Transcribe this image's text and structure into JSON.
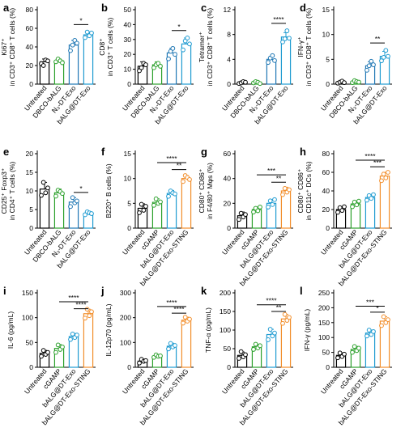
{
  "colors": {
    "Untreated": "#000000",
    "DBCO-bALG": "#2ca02c",
    "cGAMP": "#2ca02c",
    "N3-DT-Exo": "#1f77b4",
    "bALG@DT-Exo": "#1f9bd1",
    "bALG@DT-Exo-STING": "#f28e2b"
  },
  "chart_data": [
    {
      "type": "bar",
      "panel": "a",
      "ylabel": "Ki67⁺ in CD3⁺ CD8⁺ T cells (%)",
      "ylim": [
        0,
        80
      ],
      "yticks": [
        0,
        20,
        40,
        60,
        80
      ],
      "categories": [
        "Untreated",
        "DBCO-bALG",
        "N₃-DT-Exo",
        "bALG@DT-Exo"
      ],
      "values": [
        24,
        25,
        42,
        53
      ],
      "errors": [
        3,
        2,
        5,
        3
      ],
      "points": [
        [
          22,
          20,
          26,
          25
        ],
        [
          24,
          27,
          25,
          23
        ],
        [
          36,
          42,
          47,
          44
        ],
        [
          50,
          56,
          52,
          55
        ]
      ],
      "sig": [
        {
          "from": 2,
          "to": 3,
          "label": "*",
          "y": 64
        }
      ]
    },
    {
      "type": "bar",
      "panel": "b",
      "ylabel": "CD8⁺ in CD3⁺ T cells (%)",
      "ylim": [
        0,
        50
      ],
      "yticks": [
        0,
        10,
        20,
        30,
        40,
        50
      ],
      "categories": [
        "Untreated",
        "DBCO-bALG",
        "N₃-DT-Exo",
        "bALG@DT-Exo"
      ],
      "values": [
        12,
        13,
        21,
        27
      ],
      "errors": [
        3,
        2,
        3,
        4
      ],
      "points": [
        [
          9,
          11,
          14,
          13
        ],
        [
          11,
          13,
          14,
          12
        ],
        [
          17,
          22,
          24,
          20
        ],
        [
          23,
          29,
          31,
          27
        ]
      ],
      "sig": [
        {
          "from": 2,
          "to": 3,
          "label": "*",
          "y": 36
        }
      ]
    },
    {
      "type": "bar",
      "panel": "c",
      "ylabel": "Tetramer⁺ in CD3⁺ CD8⁺ T cells (%)",
      "ylim": [
        0,
        12
      ],
      "yticks": [
        0,
        4,
        8,
        12
      ],
      "categories": [
        "Untreated",
        "DBCO-bALG",
        "N₃-DT-Exo",
        "bALG@DT-Exo"
      ],
      "values": [
        0.3,
        0.3,
        4.0,
        7.6
      ],
      "errors": [
        0.2,
        0.2,
        0.5,
        0.7
      ],
      "points": [
        [
          0.1,
          0.2,
          0.4,
          0.3
        ],
        [
          0.2,
          0.4,
          0.3,
          0.1
        ],
        [
          3.5,
          4.2,
          4.6,
          3.8
        ],
        [
          6.8,
          7.3,
          8.6,
          7.4
        ]
      ],
      "sig": [
        {
          "from": 2,
          "to": 3,
          "label": "****",
          "y": 9.8
        }
      ]
    },
    {
      "type": "bar",
      "panel": "d",
      "ylabel": "IFN-γ⁺ in CD3⁺ CD8⁺ T cells (%)",
      "ylim": [
        0,
        15
      ],
      "yticks": [
        0,
        5,
        10,
        15
      ],
      "categories": [
        "Untreated",
        "DBCO-bALG",
        "N₃-DT-Exo",
        "bALG@DT-Exo"
      ],
      "values": [
        0.4,
        0.5,
        3.7,
        5.6
      ],
      "errors": [
        0.2,
        0.3,
        0.8,
        1.0
      ],
      "points": [
        [
          0.2,
          0.4,
          0.6,
          0.3
        ],
        [
          0.3,
          0.7,
          0.5,
          0.4
        ],
        [
          2.8,
          3.7,
          4.6,
          3.9
        ],
        [
          4.7,
          5.4,
          6.8,
          5.6
        ]
      ],
      "sig": [
        {
          "from": 2,
          "to": 3,
          "label": "**",
          "y": 8.3
        }
      ]
    },
    {
      "type": "bar",
      "panel": "e",
      "ylabel": "CD25⁺ Foxp3⁺ in CD4⁺ T cells (%)",
      "ylim": [
        0,
        20
      ],
      "yticks": [
        0,
        5,
        10,
        15,
        20
      ],
      "categories": [
        "Untreated",
        "DBCO-bALG",
        "N₃-DT-Exo",
        "bALG@DT-Exo"
      ],
      "values": [
        10.5,
        9.5,
        7.0,
        4.0
      ],
      "errors": [
        1.8,
        1.0,
        1.2,
        0.5
      ],
      "points": [
        [
          8.8,
          12.3,
          9.5,
          10.8
        ],
        [
          8.6,
          10.2,
          9.8,
          9.3
        ],
        [
          5.8,
          8.2,
          6.8,
          7.3
        ],
        [
          3.6,
          4.4,
          4.1,
          3.9
        ]
      ],
      "sig": [
        {
          "from": 2,
          "to": 3,
          "label": "*",
          "y": 9.6
        }
      ]
    },
    {
      "type": "bar",
      "panel": "f",
      "ylabel": "B220⁺ B cells (%)",
      "ylim": [
        0,
        15
      ],
      "yticks": [
        0,
        5,
        10,
        15
      ],
      "categories": [
        "Untreated",
        "cGAMP",
        "bALG@DT-Exo",
        "bALG@DT-Exo-STING"
      ],
      "values": [
        4.0,
        5.2,
        7.0,
        10.0
      ],
      "errors": [
        0.9,
        0.7,
        0.6,
        0.6
      ],
      "points": [
        [
          3.1,
          4.8,
          3.6,
          4.4
        ],
        [
          4.6,
          5.9,
          5.0,
          5.3
        ],
        [
          6.4,
          7.5,
          7.1,
          6.9
        ],
        [
          9.4,
          10.6,
          10.2,
          9.8
        ]
      ],
      "sig": [
        {
          "from": 2,
          "to": 3,
          "label": "**",
          "y": 11.8
        },
        {
          "from": 1,
          "to": 3,
          "label": "****",
          "y": 13.2
        }
      ]
    },
    {
      "type": "bar",
      "panel": "g",
      "ylabel": "CD80⁺ CD86⁺ in F4/80⁺ Mφs (%)",
      "ylim": [
        0,
        60
      ],
      "yticks": [
        0,
        20,
        40,
        60
      ],
      "categories": [
        "Untreated",
        "cGAMP",
        "bALG@DT-Exo",
        "bALG@DT-Exo-STING"
      ],
      "values": [
        10,
        15,
        20,
        30
      ],
      "errors": [
        3,
        2,
        3,
        3
      ],
      "points": [
        [
          7,
          12,
          9,
          11
        ],
        [
          13,
          16,
          14,
          17
        ],
        [
          17,
          22,
          19,
          23
        ],
        [
          27,
          32,
          29,
          31
        ]
      ],
      "sig": [
        {
          "from": 2,
          "to": 3,
          "label": "**",
          "y": 37
        },
        {
          "from": 1,
          "to": 3,
          "label": "***",
          "y": 43
        }
      ]
    },
    {
      "type": "bar",
      "panel": "h",
      "ylabel": "CD80⁺ CD86⁺ in CD11c⁺ DCs (%)",
      "ylim": [
        0,
        80
      ],
      "yticks": [
        0,
        20,
        40,
        60,
        80
      ],
      "categories": [
        "Untreated",
        "cGAMP",
        "bALG@DT-Exo",
        "bALG@DT-Exo-STING"
      ],
      "values": [
        20,
        26,
        33,
        56
      ],
      "errors": [
        3,
        3,
        3,
        4
      ],
      "points": [
        [
          17,
          22,
          19,
          23
        ],
        [
          23,
          28,
          25,
          29
        ],
        [
          30,
          35,
          32,
          36
        ],
        [
          51,
          58,
          54,
          60
        ]
      ],
      "sig": [
        {
          "from": 2,
          "to": 3,
          "label": "***",
          "y": 66
        },
        {
          "from": 1,
          "to": 3,
          "label": "****",
          "y": 73
        }
      ]
    },
    {
      "type": "bar",
      "panel": "i",
      "ylabel": "IL-6 (pg/mL)",
      "ylim": [
        0,
        150
      ],
      "yticks": [
        0,
        50,
        100,
        150
      ],
      "categories": [
        "Untreated",
        "cGAMP",
        "bALG@DT-Exo",
        "bALG@DT-Exo-STING"
      ],
      "values": [
        28,
        38,
        62,
        108
      ],
      "errors": [
        6,
        8,
        6,
        9
      ],
      "points": [
        [
          22,
          34,
          26,
          30
        ],
        [
          30,
          45,
          36,
          41
        ],
        [
          56,
          67,
          60,
          65
        ],
        [
          99,
          117,
          104,
          112
        ]
      ],
      "sig": [
        {
          "from": 2,
          "to": 3,
          "label": "****",
          "y": 118
        },
        {
          "from": 1,
          "to": 3,
          "label": "****",
          "y": 132
        }
      ]
    },
    {
      "type": "bar",
      "panel": "j",
      "ylabel": "IL-12p70 (pg/mL)",
      "ylim": [
        0,
        300
      ],
      "yticks": [
        0,
        100,
        200,
        300
      ],
      "categories": [
        "Untreated",
        "cGAMP",
        "bALG@DT-Exo",
        "bALG@DT-Exo-STING"
      ],
      "values": [
        25,
        45,
        85,
        190
      ],
      "errors": [
        8,
        6,
        12,
        12
      ],
      "points": [
        [
          17,
          32,
          24,
          27
        ],
        [
          40,
          50,
          44,
          46
        ],
        [
          74,
          96,
          82,
          88
        ],
        [
          178,
          202,
          186,
          194
        ]
      ],
      "sig": [
        {
          "from": 2,
          "to": 3,
          "label": "****",
          "y": 218
        },
        {
          "from": 1,
          "to": 3,
          "label": "****",
          "y": 245
        }
      ]
    },
    {
      "type": "bar",
      "panel": "k",
      "ylabel": "TNF-α (pg/mL)",
      "ylim": [
        0,
        200
      ],
      "yticks": [
        0,
        50,
        100,
        150,
        200
      ],
      "categories": [
        "Untreated",
        "cGAMP",
        "bALG@DT-Exo",
        "bALG@DT-Exo-STING"
      ],
      "values": [
        32,
        55,
        88,
        130
      ],
      "errors": [
        9,
        7,
        14,
        12
      ],
      "points": [
        [
          24,
          42,
          28,
          34
        ],
        [
          48,
          62,
          52,
          58
        ],
        [
          74,
          102,
          84,
          92
        ],
        [
          118,
          142,
          126,
          134
        ]
      ],
      "sig": [
        {
          "from": 2,
          "to": 3,
          "label": "**",
          "y": 150
        },
        {
          "from": 1,
          "to": 3,
          "label": "****",
          "y": 168
        }
      ]
    },
    {
      "type": "bar",
      "panel": "l",
      "ylabel": "IFN-γ (pg/mL)",
      "ylim": [
        0,
        250
      ],
      "yticks": [
        0,
        50,
        100,
        150,
        200,
        250
      ],
      "categories": [
        "Untreated",
        "cGAMP",
        "bALG@DT-Exo",
        "bALG@DT-Exo-STING"
      ],
      "values": [
        40,
        60,
        115,
        155
      ],
      "errors": [
        8,
        10,
        10,
        15
      ],
      "points": [
        [
          32,
          48,
          36,
          44
        ],
        [
          50,
          70,
          56,
          64
        ],
        [
          105,
          125,
          110,
          120
        ],
        [
          140,
          170,
          150,
          160
        ]
      ],
      "sig": [
        {
          "from": 2,
          "to": 3,
          "label": "*",
          "y": 185
        },
        {
          "from": 1,
          "to": 3,
          "label": "***",
          "y": 205
        }
      ]
    }
  ]
}
